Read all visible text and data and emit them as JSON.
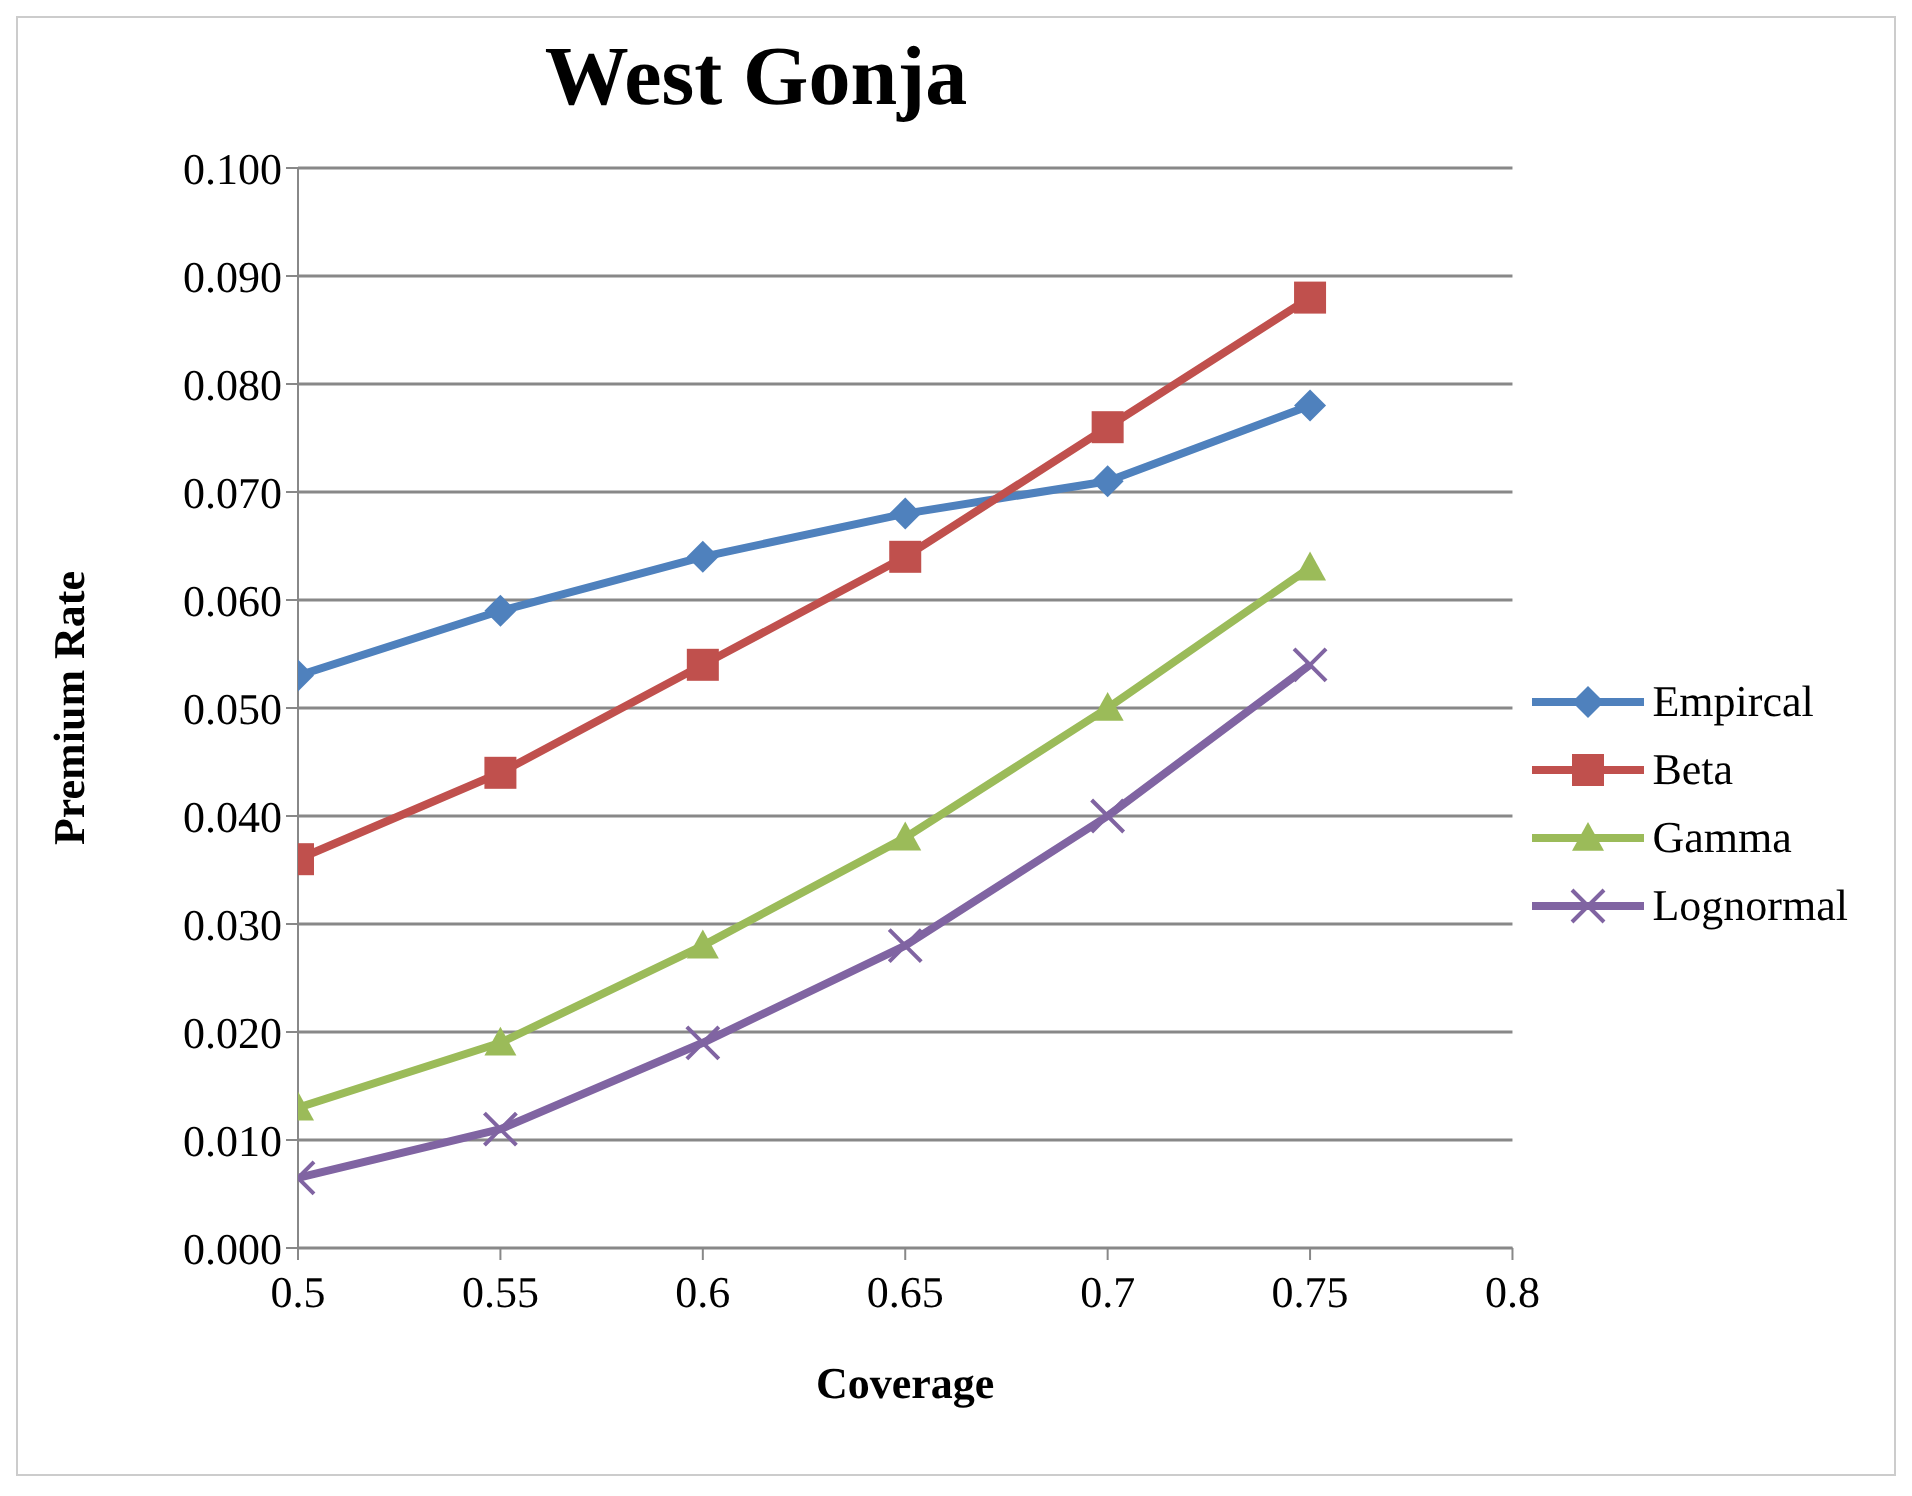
{
  "chart_data": {
    "type": "line",
    "title": "West Gonja",
    "xlabel": "Coverage",
    "ylabel": "Premium Rate",
    "x": [
      0.5,
      0.55,
      0.6,
      0.65,
      0.7,
      0.75
    ],
    "series": [
      {
        "name": "Empircal",
        "color": "#4f81bd",
        "marker": "diamond",
        "values": [
          0.053,
          0.059,
          0.064,
          0.068,
          0.071,
          0.078
        ]
      },
      {
        "name": "Beta",
        "color": "#c0504d",
        "marker": "square",
        "values": [
          0.036,
          0.044,
          0.054,
          0.064,
          0.076,
          0.088
        ]
      },
      {
        "name": "Gamma",
        "color": "#9bbb59",
        "marker": "triangle",
        "values": [
          0.013,
          0.019,
          0.028,
          0.038,
          0.05,
          0.063
        ]
      },
      {
        "name": "Lognormal",
        "color": "#8064a2",
        "marker": "cross",
        "values": [
          0.0065,
          0.011,
          0.019,
          0.028,
          0.04,
          0.054
        ]
      }
    ],
    "xlim": [
      0.5,
      0.8
    ],
    "xticks": [
      0.5,
      0.55,
      0.6,
      0.65,
      0.7,
      0.75,
      0.8
    ],
    "ylim": [
      0,
      0.1
    ],
    "yticks": [
      {
        "value": 0,
        "label": "0.000"
      },
      {
        "value": 0.01,
        "label": "0.010"
      },
      {
        "value": 0.02,
        "label": "0.020"
      },
      {
        "value": 0.03,
        "label": "0.030"
      },
      {
        "value": 0.04,
        "label": "0.040"
      },
      {
        "value": 0.05,
        "label": "0.050"
      },
      {
        "value": 0.06,
        "label": "0.060"
      },
      {
        "value": 0.07,
        "label": "0.070"
      },
      {
        "value": 0.08,
        "label": "0.080"
      },
      {
        "value": 0.09,
        "label": "0.090"
      },
      {
        "value": 0.1,
        "label": "0.100"
      }
    ],
    "grid": "y",
    "legend": "right",
    "line_style": "solid"
  }
}
